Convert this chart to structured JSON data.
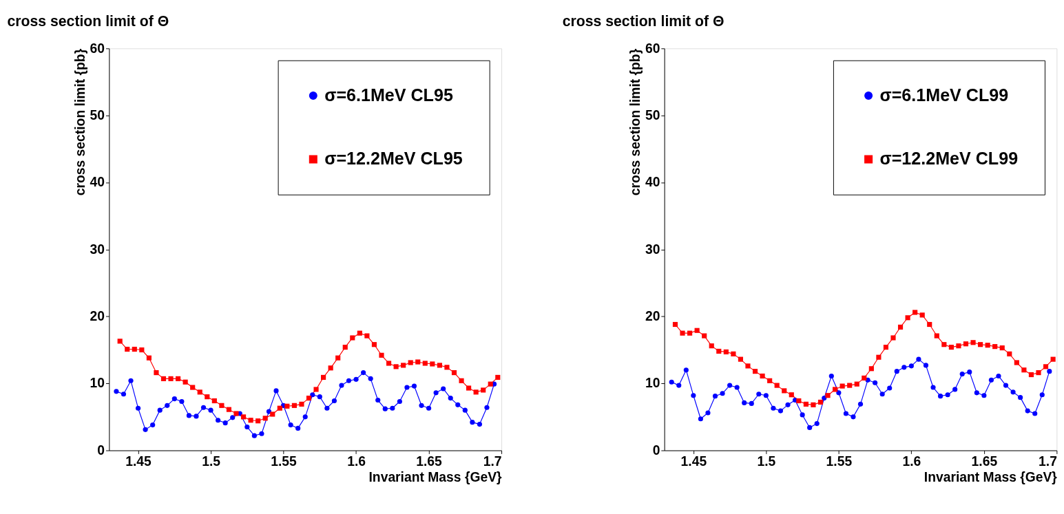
{
  "chart_data": [
    {
      "type": "line",
      "title": "cross section limit of Θ",
      "xlabel": "Invariant Mass {GeV}",
      "ylabel": "cross section limit {pb}",
      "xlim": [
        1.43,
        1.7
      ],
      "xticks": [
        1.45,
        1.5,
        1.55,
        1.6,
        1.65,
        1.7
      ],
      "ylim": [
        0,
        60
      ],
      "yticks": [
        0,
        10,
        20,
        30,
        40,
        50,
        60
      ],
      "grid": false,
      "legend": "top right",
      "series": [
        {
          "name": "σ=6.1MeV CL95",
          "color": "#0000ff",
          "marker": "circle",
          "x": [
            1.435,
            1.44,
            1.445,
            1.45,
            1.455,
            1.46,
            1.465,
            1.47,
            1.475,
            1.48,
            1.485,
            1.49,
            1.495,
            1.5,
            1.505,
            1.51,
            1.515,
            1.52,
            1.525,
            1.53,
            1.535,
            1.54,
            1.545,
            1.55,
            1.555,
            1.56,
            1.565,
            1.57,
            1.575,
            1.58,
            1.585,
            1.59,
            1.595,
            1.6,
            1.605,
            1.61,
            1.615,
            1.62,
            1.625,
            1.63,
            1.635,
            1.64,
            1.645,
            1.65,
            1.655,
            1.66,
            1.665,
            1.67,
            1.675,
            1.68,
            1.685,
            1.69,
            1.695
          ],
          "values": [
            8.8,
            8.4,
            10.4,
            6.3,
            3.1,
            3.8,
            6.0,
            6.7,
            7.7,
            7.3,
            5.2,
            5.1,
            6.4,
            6.0,
            4.5,
            4.1,
            4.9,
            5.5,
            3.5,
            2.2,
            2.5,
            5.8,
            8.9,
            6.7,
            3.8,
            3.3,
            5.0,
            8.3,
            8.0,
            6.3,
            7.4,
            9.7,
            10.4,
            10.6,
            11.6,
            10.7,
            7.5,
            6.2,
            6.3,
            7.3,
            9.4,
            9.6,
            6.7,
            6.3,
            8.6,
            9.2,
            7.8,
            6.8,
            6.0,
            4.2,
            3.9,
            6.4,
            9.9
          ]
        },
        {
          "name": "σ=12.2MeV CL95",
          "color": "#ff0000",
          "marker": "square",
          "x": [
            1.4375,
            1.4425,
            1.4475,
            1.4525,
            1.4575,
            1.4625,
            1.4675,
            1.4725,
            1.4775,
            1.4825,
            1.4875,
            1.4925,
            1.4975,
            1.5025,
            1.5075,
            1.5125,
            1.5175,
            1.5225,
            1.5275,
            1.5325,
            1.5375,
            1.5425,
            1.5475,
            1.5525,
            1.5575,
            1.5625,
            1.5675,
            1.5725,
            1.5775,
            1.5825,
            1.5875,
            1.5925,
            1.5975,
            1.6025,
            1.6075,
            1.6125,
            1.6175,
            1.6225,
            1.6275,
            1.6325,
            1.6375,
            1.6425,
            1.6475,
            1.6525,
            1.6575,
            1.6625,
            1.6675,
            1.6725,
            1.6775,
            1.6825,
            1.6875,
            1.6925,
            1.6975
          ],
          "values": [
            16.3,
            15.1,
            15.1,
            15.0,
            13.8,
            11.6,
            10.7,
            10.7,
            10.7,
            10.2,
            9.4,
            8.7,
            8.0,
            7.4,
            6.7,
            6.1,
            5.5,
            5.0,
            4.5,
            4.4,
            4.8,
            5.4,
            6.3,
            6.6,
            6.7,
            6.9,
            7.8,
            9.1,
            10.9,
            12.3,
            13.8,
            15.4,
            16.8,
            17.5,
            17.1,
            15.8,
            14.2,
            13.0,
            12.5,
            12.7,
            13.1,
            13.2,
            13.0,
            12.9,
            12.7,
            12.4,
            11.6,
            10.4,
            9.3,
            8.7,
            9.0,
            9.9,
            10.9
          ]
        }
      ]
    },
    {
      "type": "line",
      "title": "cross section limit of Θ",
      "xlabel": "Invariant Mass {GeV}",
      "ylabel": "cross section limit {pb}",
      "xlim": [
        1.43,
        1.7
      ],
      "xticks": [
        1.45,
        1.5,
        1.55,
        1.6,
        1.65,
        1.7
      ],
      "ylim": [
        0,
        60
      ],
      "yticks": [
        0,
        10,
        20,
        30,
        40,
        50,
        60
      ],
      "grid": false,
      "legend": "top right",
      "series": [
        {
          "name": "σ=6.1MeV CL99",
          "color": "#0000ff",
          "marker": "circle",
          "x": [
            1.435,
            1.44,
            1.445,
            1.45,
            1.455,
            1.46,
            1.465,
            1.47,
            1.475,
            1.48,
            1.485,
            1.49,
            1.495,
            1.5,
            1.505,
            1.51,
            1.515,
            1.52,
            1.525,
            1.53,
            1.535,
            1.54,
            1.545,
            1.55,
            1.555,
            1.56,
            1.565,
            1.57,
            1.575,
            1.58,
            1.585,
            1.59,
            1.595,
            1.6,
            1.605,
            1.61,
            1.615,
            1.62,
            1.625,
            1.63,
            1.635,
            1.64,
            1.645,
            1.65,
            1.655,
            1.66,
            1.665,
            1.67,
            1.675,
            1.68,
            1.685,
            1.69,
            1.695
          ],
          "values": [
            10.2,
            9.7,
            12.0,
            8.2,
            4.7,
            5.6,
            8.1,
            8.5,
            9.7,
            9.4,
            7.1,
            7.0,
            8.4,
            8.2,
            6.3,
            5.9,
            6.8,
            7.5,
            5.3,
            3.4,
            4.0,
            7.8,
            11.1,
            8.6,
            5.5,
            5.0,
            6.9,
            10.5,
            10.1,
            8.4,
            9.3,
            11.8,
            12.4,
            12.6,
            13.6,
            12.7,
            9.4,
            8.1,
            8.3,
            9.1,
            11.4,
            11.7,
            8.6,
            8.2,
            10.5,
            11.1,
            9.7,
            8.7,
            7.9,
            5.9,
            5.5,
            8.3,
            11.8
          ]
        },
        {
          "name": "σ=12.2MeV CL99",
          "color": "#ff0000",
          "marker": "square",
          "x": [
            1.4375,
            1.4425,
            1.4475,
            1.4525,
            1.4575,
            1.4625,
            1.4675,
            1.4725,
            1.4775,
            1.4825,
            1.4875,
            1.4925,
            1.4975,
            1.5025,
            1.5075,
            1.5125,
            1.5175,
            1.5225,
            1.5275,
            1.5325,
            1.5375,
            1.5425,
            1.5475,
            1.5525,
            1.5575,
            1.5625,
            1.5675,
            1.5725,
            1.5775,
            1.5825,
            1.5875,
            1.5925,
            1.5975,
            1.6025,
            1.6075,
            1.6125,
            1.6175,
            1.6225,
            1.6275,
            1.6325,
            1.6375,
            1.6425,
            1.6475,
            1.6525,
            1.6575,
            1.6625,
            1.6675,
            1.6725,
            1.6775,
            1.6825,
            1.6875,
            1.6925,
            1.6975
          ],
          "values": [
            18.8,
            17.5,
            17.5,
            17.9,
            17.1,
            15.6,
            14.8,
            14.7,
            14.4,
            13.6,
            12.6,
            11.8,
            11.1,
            10.4,
            9.7,
            8.9,
            8.3,
            7.4,
            6.9,
            6.8,
            7.2,
            8.2,
            9.1,
            9.6,
            9.7,
            9.9,
            10.8,
            12.2,
            13.9,
            15.4,
            16.8,
            18.4,
            19.8,
            20.6,
            20.2,
            18.8,
            17.1,
            15.8,
            15.4,
            15.6,
            15.9,
            16.1,
            15.8,
            15.7,
            15.5,
            15.3,
            14.4,
            13.1,
            12.0,
            11.3,
            11.6,
            12.5,
            13.6
          ]
        }
      ]
    }
  ]
}
